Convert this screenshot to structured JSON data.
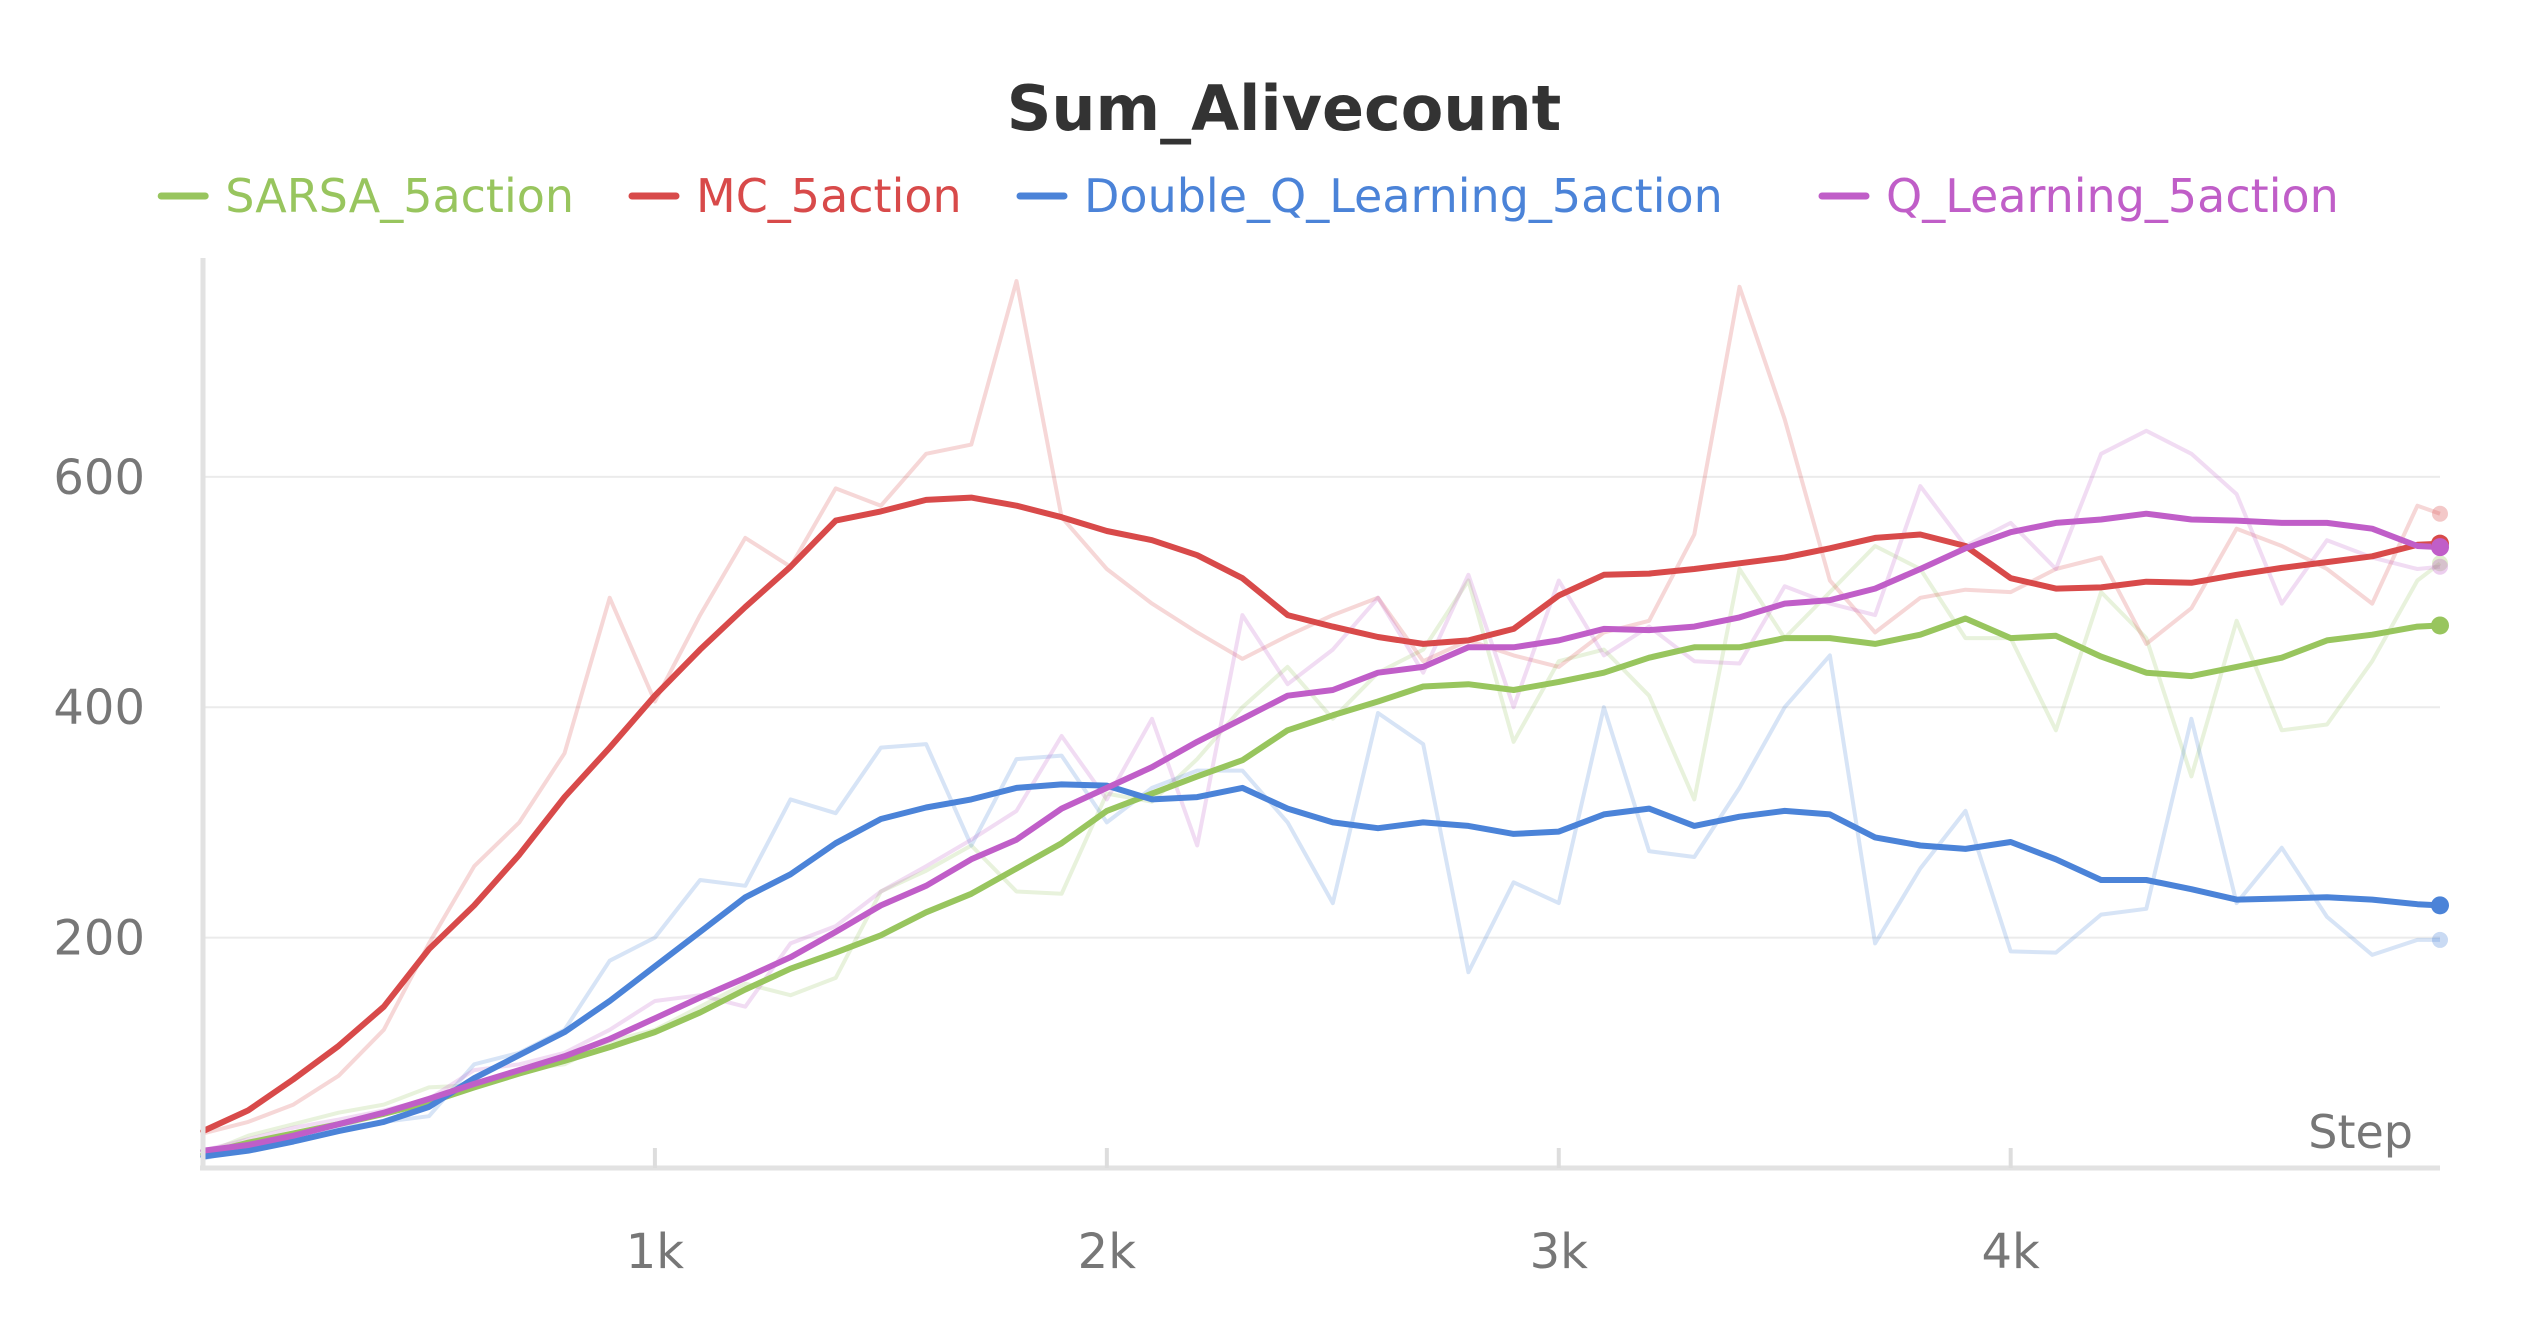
{
  "chart_data": {
    "type": "line",
    "title": "Sum_Alivecount",
    "xlabel": "Step",
    "ylabel": "",
    "xlim": [
      0,
      4950
    ],
    "ylim": [
      0,
      790
    ],
    "x_ticks": [
      1000,
      2000,
      3000,
      4000
    ],
    "x_tick_labels": [
      "1k",
      "2k",
      "3k",
      "4k"
    ],
    "y_ticks": [
      200,
      400,
      600
    ],
    "y_tick_labels": [
      "200",
      "400",
      "600"
    ],
    "grid": "horizontal",
    "legend_position": "top",
    "x": [
      0,
      100,
      200,
      300,
      400,
      500,
      600,
      700,
      800,
      900,
      1000,
      1100,
      1200,
      1300,
      1400,
      1500,
      1600,
      1700,
      1800,
      1900,
      2000,
      2100,
      2200,
      2300,
      2400,
      2500,
      2600,
      2700,
      2800,
      2900,
      3000,
      3100,
      3200,
      3300,
      3400,
      3500,
      3600,
      3700,
      3800,
      3900,
      4000,
      4100,
      4200,
      4300,
      4400,
      4500,
      4600,
      4700,
      4800,
      4900,
      4950
    ],
    "series": [
      {
        "name": "SARSA_5action",
        "color": "#98c55e",
        "smoothed": [
          12,
          22,
          30,
          38,
          47,
          57,
          70,
          82,
          93,
          105,
          118,
          135,
          155,
          173,
          187,
          202,
          222,
          238,
          260,
          282,
          310,
          325,
          340,
          354,
          380,
          393,
          405,
          418,
          420,
          415,
          422,
          430,
          443,
          452,
          452,
          460,
          460,
          455,
          463,
          477,
          460,
          462,
          444,
          430,
          427,
          435,
          443,
          458,
          463,
          470,
          471
        ],
        "raw": [
          12,
          28,
          38,
          48,
          55,
          70,
          72,
          85,
          90,
          110,
          120,
          140,
          160,
          150,
          165,
          240,
          258,
          280,
          240,
          238,
          325,
          318,
          355,
          400,
          435,
          390,
          430,
          450,
          510,
          370,
          440,
          450,
          410,
          320,
          520,
          460,
          500,
          540,
          520,
          460,
          460,
          380,
          500,
          460,
          340,
          475,
          380,
          385,
          440,
          510,
          525
        ]
      },
      {
        "name": "MC_5action",
        "color": "#d84a4a",
        "smoothed": [
          32,
          50,
          77,
          106,
          140,
          190,
          228,
          272,
          322,
          365,
          410,
          450,
          487,
          522,
          562,
          570,
          580,
          582,
          575,
          565,
          553,
          545,
          532,
          512,
          480,
          470,
          461,
          455,
          458,
          468,
          497,
          515,
          516,
          520,
          525,
          530,
          538,
          547,
          550,
          540,
          512,
          503,
          504,
          509,
          508,
          515,
          521,
          526,
          531,
          541,
          542
        ],
        "raw": [
          30,
          40,
          55,
          80,
          120,
          195,
          262,
          300,
          360,
          495,
          405,
          480,
          547,
          522,
          590,
          575,
          620,
          628,
          770,
          565,
          520,
          490,
          465,
          442,
          462,
          480,
          495,
          440,
          458,
          445,
          435,
          465,
          475,
          550,
          765,
          650,
          510,
          465,
          495,
          502,
          500,
          520,
          530,
          455,
          486,
          555,
          540,
          520,
          490,
          575,
          568
        ]
      },
      {
        "name": "Double_Q_Learning_5action",
        "color": "#4b83d8",
        "smoothed": [
          10,
          15,
          23,
          32,
          40,
          53,
          78,
          98,
          118,
          145,
          175,
          205,
          235,
          255,
          282,
          303,
          313,
          320,
          330,
          333,
          332,
          320,
          322,
          330,
          312,
          300,
          295,
          300,
          297,
          290,
          292,
          307,
          312,
          297,
          305,
          310,
          307,
          287,
          280,
          277,
          283,
          268,
          250,
          250,
          242,
          233,
          234,
          235,
          233,
          229,
          228
        ],
        "raw": [
          8,
          18,
          25,
          35,
          40,
          45,
          90,
          100,
          120,
          180,
          200,
          250,
          245,
          320,
          308,
          365,
          368,
          280,
          355,
          358,
          300,
          330,
          345,
          345,
          300,
          230,
          395,
          368,
          170,
          248,
          230,
          400,
          275,
          270,
          330,
          400,
          445,
          195,
          260,
          310,
          188,
          187,
          220,
          225,
          390,
          230,
          278,
          218,
          185,
          198,
          198
        ]
      },
      {
        "name": "Q_Learning_5action",
        "color": "#c05ec8",
        "smoothed": [
          15,
          20,
          28,
          38,
          48,
          60,
          73,
          85,
          97,
          112,
          130,
          148,
          165,
          183,
          205,
          228,
          245,
          268,
          285,
          312,
          330,
          348,
          370,
          390,
          410,
          415,
          430,
          435,
          452,
          452,
          458,
          468,
          467,
          470,
          478,
          490,
          493,
          503,
          520,
          538,
          552,
          560,
          563,
          568,
          563,
          562,
          560,
          560,
          555,
          540,
          539
        ],
        "raw": [
          15,
          25,
          35,
          42,
          50,
          60,
          85,
          90,
          100,
          120,
          145,
          150,
          140,
          195,
          210,
          240,
          262,
          285,
          310,
          375,
          320,
          390,
          280,
          480,
          420,
          450,
          495,
          430,
          515,
          400,
          510,
          445,
          470,
          440,
          438,
          505,
          490,
          480,
          592,
          540,
          560,
          520,
          620,
          640,
          620,
          585,
          490,
          545,
          530,
          520,
          522
        ]
      }
    ]
  }
}
